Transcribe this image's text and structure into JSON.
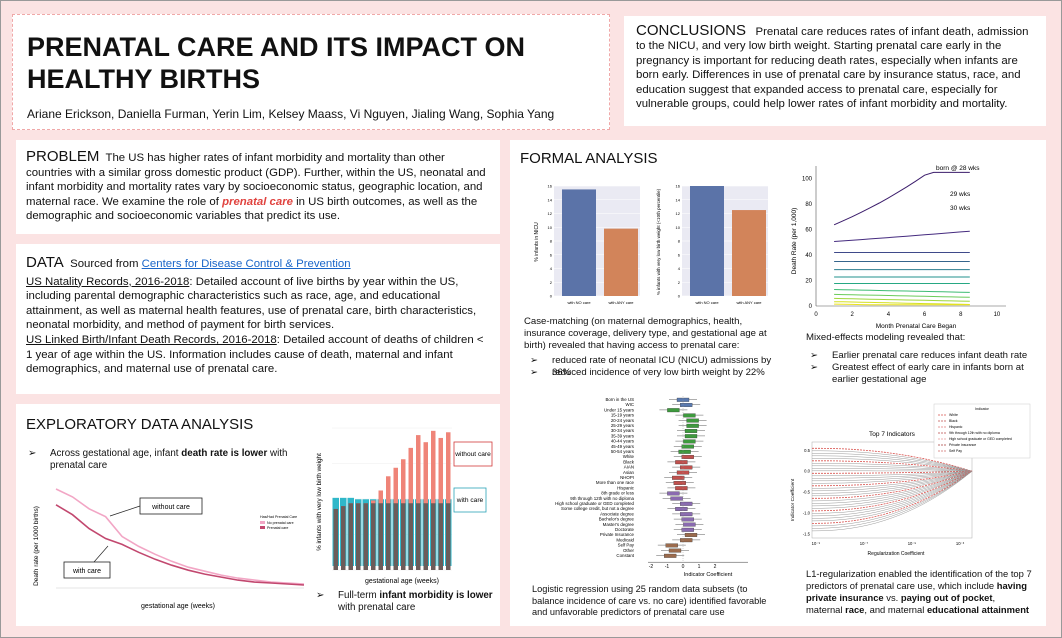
{
  "title": "PRENATAL CARE AND ITS IMPACT ON HEALTHY BIRTHS",
  "authors": "Ariane Erickson, Daniella Furman, Yerin Lim, Kelsey Maass, Vi Nguyen, Jialing Wang, Sophia Yang",
  "conclusions": {
    "heading": "CONCLUSIONS",
    "text": "Prenatal care reduces rates of infant death, admission to the NICU, and very low birth weight. Starting prenatal care early in the pregnancy is important for reducing death rates, especially when infants are born early. Differences in use of prenatal care by insurance status, race, and education suggest that expanded access to prenatal care, especially for vulnerable groups, could help lower rates of infant morbidity and mortality."
  },
  "problem": {
    "heading": "PROBLEM",
    "text_before": "The US has higher rates of infant morbidity and mortality than other countries with a similar gross domestic product (GDP). Further, within the US, neonatal and infant morbidity and mortality rates vary by socioeconomic status, geographic location, and maternal race. We examine the role of",
    "highlight": "prenatal care",
    "text_after": "in US birth outcomes, as well as the demographic and socioeconomic variables that predict its use."
  },
  "data": {
    "heading": "DATA",
    "sourced": "Sourced from",
    "source_link": "Centers for Disease Control & Prevention",
    "natality_title": "US Natality Records, 2016-2018",
    "natality_text": ": Detailed account of live births by year within the US, including parental demographic characteristics such as race, age, and educational attainment, as well as maternal health features, use of prenatal care, birth characteristics, neonatal morbidity, and method of payment for birth services.",
    "linked_title": "US Linked Birth/Infant Death Records, 2016-2018",
    "linked_text": ": Detailed account of deaths of children < 1 year of age within the US. Information includes cause of death, maternal and infant demographics, and maternal use of prenatal care."
  },
  "eda": {
    "heading": "EXPLORATORY DATA ANALYSIS",
    "bullet1_pre": "Across gestational age, infant",
    "bullet1_bold": "death rate is lower",
    "bullet1_post": "with prenatal care",
    "bullet2_pre": "Full-term",
    "bullet2_bold": "infant morbidity is lower",
    "bullet2_post": "with prenatal care",
    "line_chart": {
      "ylabel": "Death rate (per 1000 births)",
      "xlabel": "gestational age (weeks)",
      "callout_without": "without care",
      "callout_with": "with care",
      "legend_title": "Has/Had Prenatal Care",
      "legend_items": [
        "No prenatal care",
        "Prenatal care"
      ]
    },
    "bar_chart": {
      "ylabel": "% infants with very low birth weight",
      "xlabel": "gestational age (weeks)",
      "callout_without": "without care",
      "callout_with": "with care"
    }
  },
  "formal": {
    "heading": "FORMAL ANALYSIS",
    "casematch_text": "Case-matching (on maternal demographics, health, insurance coverage, delivery type, and gestational age at birth) revealed that having access to prenatal care:",
    "casematch_bullets": [
      "reduced rate of neonatal ICU (NICU) admissions by 36%",
      "reduced incidence of very low birth weight by 22%"
    ],
    "mixed_text": "Mixed-effects modeling revealed that:",
    "mixed_bullets": [
      "Earlier prenatal care reduces infant death rate",
      "Greatest effect of early care in infants born at earlier gestational age"
    ],
    "logistic_text": "Logistic regression using 25 random data subsets (to balance incidence of care vs. no care) identified favorable and unfavorable predictors of prenatal care use",
    "l1_text_pre": "L1-regularization enabled the identification of the top 7 predictors of prenatal care use, which include",
    "l1_b1": "having private insurance",
    "l1_mid1": "vs.",
    "l1_b2": "paying out of pocket",
    "l1_mid2": ", maternal",
    "l1_b3": "race",
    "l1_mid3": ", and maternal",
    "l1_b4": "educational attainment",
    "nicu_chart": {
      "ylabel": "% infants in NICU",
      "labels": [
        "with NO care",
        "with ANY care"
      ]
    },
    "vlbw_chart": {
      "ylabel": "% infants with very low birth weight (<10th percentile)",
      "labels": [
        "with NO care",
        "with ANY care"
      ]
    },
    "mixed_chart": {
      "ylabel": "Death Rate (per 1,000)",
      "xlabel": "Month Prenatal Care Began",
      "labels": [
        "born @ 28 wks",
        "29 wks",
        "30 wks"
      ]
    },
    "box_chart": {
      "xlabel": "Indicator Coefficient",
      "categories": [
        "Born in the US",
        "WIC",
        "Under 15 years",
        "15-19 years",
        "20-24 years",
        "25-29 years",
        "30-34 years",
        "35-39 years",
        "40-44 years",
        "45-49 years",
        "50-54 years",
        "White",
        "Black",
        "AIAN",
        "Asian",
        "NHOPI",
        "More than one race",
        "Hispanic",
        "8th grade or less",
        "9th through 12th with no diploma",
        "High school graduate or GED completed",
        "Some college credit, but not a degree",
        "Associate degree",
        "Bachelor's degree",
        "Master's degree",
        "Doctorate",
        "Private Insurance",
        "Medicaid",
        "Self Pay",
        "Other",
        "Constant"
      ]
    },
    "l1_chart": {
      "title": "Top 7 Indicators",
      "ylabel": "Indicator Coefficient",
      "xlabel": "Regularization Coefficient",
      "legend_title": "Indicator",
      "legend_items": [
        "White",
        "Black",
        "Hispanic",
        "9th through 12th with no diploma",
        "High school graduate or GED completed",
        "Private Insurance",
        "Self Pay"
      ]
    }
  },
  "chart_data": [
    {
      "type": "line",
      "title": "",
      "xlabel": "gestational age (weeks)",
      "ylabel": "Death rate (per 1000 births)",
      "series": [
        {
          "name": "No prenatal care",
          "values": [
            100,
            92,
            80,
            72,
            52,
            42,
            34,
            27,
            21,
            17,
            13,
            10,
            8,
            6,
            5,
            4
          ]
        },
        {
          "name": "Prenatal care",
          "values": [
            84,
            74,
            60,
            50,
            44,
            36,
            29,
            23,
            18,
            14,
            11,
            8,
            6,
            5,
            4,
            3
          ]
        }
      ]
    },
    {
      "type": "bar",
      "title": "",
      "xlabel": "gestational age (weeks)",
      "ylabel": "% infants with very low birth weight",
      "series": [
        {
          "name": "without care",
          "values": [
            43,
            45,
            47,
            47,
            47,
            49,
            56,
            66,
            72,
            78,
            86,
            95,
            90,
            98,
            93,
            97
          ]
        },
        {
          "name": "with care",
          "values": [
            48,
            48,
            48,
            47,
            47,
            47,
            47,
            47,
            47,
            47,
            47,
            47,
            47,
            47,
            47,
            47
          ]
        }
      ]
    },
    {
      "type": "bar",
      "title": "",
      "ylabel": "% infants in NICU",
      "categories": [
        "with NO care",
        "with ANY care"
      ],
      "values": [
        15.5,
        9.8
      ],
      "ylim": [
        0,
        16
      ]
    },
    {
      "type": "bar",
      "title": "",
      "ylabel": "% infants with very low birth weight (<10th percentile)",
      "categories": [
        "with NO care",
        "with ANY care"
      ],
      "values": [
        16.0,
        12.5
      ],
      "ylim": [
        0,
        16
      ]
    }
  ]
}
